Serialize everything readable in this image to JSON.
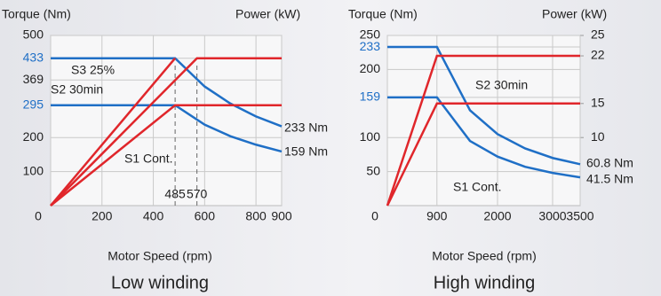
{
  "chart_data": [
    {
      "type": "line",
      "title": "Low winding",
      "xlabel": "Motor Speed (rpm)",
      "ylabel": "Torque (Nm)",
      "y2label": "Power (kW)",
      "xlim": [
        0,
        900
      ],
      "xticks": [
        0,
        200,
        400,
        600,
        800,
        900
      ],
      "ylim": [
        0,
        500
      ],
      "yticks": [
        100,
        200,
        295,
        369,
        433,
        500
      ],
      "ytick_colors": [
        "#222222",
        "#222222",
        "#1f6fc6",
        "#222222",
        "#1f6fc6",
        "#222222"
      ],
      "grid": true,
      "markers": [
        485,
        570
      ],
      "annotations": [
        "S3 25%",
        "S2 30min",
        "S1 Cont.",
        "233 Nm",
        "159 Nm"
      ],
      "series": [
        {
          "color": "#1f6fc6",
          "x": [
            0,
            485,
            600,
            700,
            800,
            900
          ],
          "values": [
            433,
            433,
            350,
            300,
            262,
            233
          ]
        },
        {
          "color": "#1f6fc6",
          "x": [
            0,
            485,
            600,
            700,
            800,
            900
          ],
          "values": [
            295,
            295,
            238,
            204,
            179,
            159
          ]
        },
        {
          "color": "#e0262b",
          "x": [
            0,
            485
          ],
          "values": [
            0,
            433
          ]
        },
        {
          "color": "#e0262b",
          "x": [
            0,
            570,
            900
          ],
          "values": [
            0,
            433,
            433
          ]
        },
        {
          "color": "#e0262b",
          "x": [
            0,
            485,
            900
          ],
          "values": [
            0,
            295,
            295
          ]
        }
      ]
    },
    {
      "type": "line",
      "title": "High winding",
      "xlabel": "Motor Speed (rpm)",
      "ylabel": "Torque (Nm)",
      "y2label": "Power (kW)",
      "xlim": [
        0,
        3500
      ],
      "xticks": [
        0,
        900,
        2000,
        3000,
        3500
      ],
      "ylim": [
        0,
        250
      ],
      "yticks": [
        50,
        100,
        159,
        200,
        233,
        250
      ],
      "ytick_colors": [
        "#222222",
        "#222222",
        "#1f6fc6",
        "#222222",
        "#1f6fc6",
        "#222222"
      ],
      "y2lim": [
        0,
        25
      ],
      "y2ticks": [
        10,
        15,
        22,
        25
      ],
      "grid": true,
      "annotations": [
        "S2 30min",
        "S1 Cont.",
        "60.8 Nm",
        "41.5 Nm"
      ],
      "series": [
        {
          "color": "#1f6fc6",
          "x": [
            0,
            900,
            1500,
            2000,
            2500,
            3000,
            3500
          ],
          "values": [
            233,
            233,
            140,
            105,
            84,
            70,
            60.8
          ]
        },
        {
          "color": "#1f6fc6",
          "x": [
            0,
            900,
            1500,
            2000,
            2500,
            3000,
            3500
          ],
          "values": [
            159,
            159,
            95,
            72,
            57,
            48,
            41.5
          ]
        },
        {
          "color": "#e0262b",
          "axis": "y2",
          "x": [
            0,
            900,
            3500
          ],
          "values": [
            0,
            22,
            22
          ]
        },
        {
          "color": "#e0262b",
          "axis": "y2",
          "x": [
            0,
            900,
            3500
          ],
          "values": [
            0,
            15,
            15
          ]
        }
      ]
    }
  ]
}
